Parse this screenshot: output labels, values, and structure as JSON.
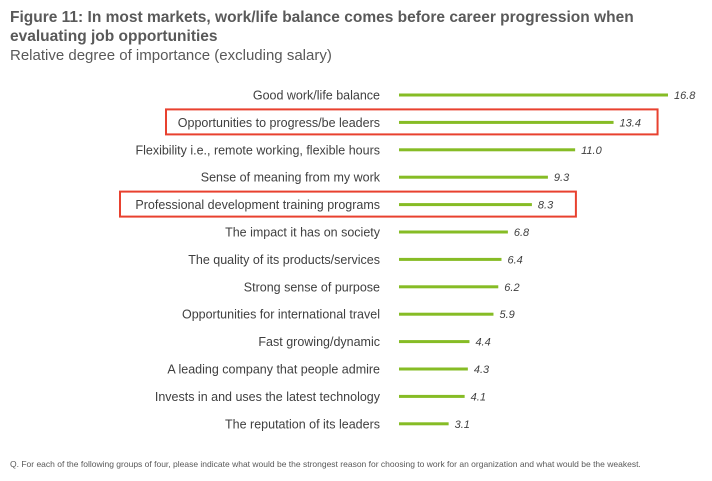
{
  "chart_data": {
    "type": "bar",
    "orientation": "horizontal",
    "title": "Figure 11: In most markets, work/life balance comes before career progression when evaluating job opportunities",
    "subtitle": "Relative degree of importance (excluding salary)",
    "categories": [
      "Good work/life balance",
      "Opportunities to progress/be leaders",
      "Flexibility i.e., remote working, flexible hours",
      "Sense of meaning from my work",
      "Professional development training programs",
      "The impact it has on society",
      "The quality of its products/services",
      "Strong sense of purpose",
      "Opportunities for international travel",
      "Fast growing/dynamic",
      "A leading company that people admire",
      "Invests in and uses the latest technology",
      "The reputation of its leaders"
    ],
    "values": [
      16.8,
      13.4,
      11.0,
      9.3,
      8.3,
      6.8,
      6.4,
      6.2,
      5.9,
      4.4,
      4.3,
      4.1,
      3.1
    ],
    "value_labels": [
      "16.8",
      "13.4",
      "11.0",
      "9.3",
      "8.3",
      "6.8",
      "6.4",
      "6.2",
      "5.9",
      "4.4",
      "4.3",
      "4.1",
      "3.1"
    ],
    "highlighted_indices": [
      1,
      4
    ],
    "xlim": [
      0,
      16.8
    ],
    "grid": false,
    "legend": "none",
    "bar_color": "#86bc25",
    "highlight_color": "#e8412f",
    "label_color": "#3f3f3f"
  },
  "footnote": "Q. For each of the following groups of four, please indicate what would be the strongest reason for choosing to work for an organization and what would be the weakest."
}
